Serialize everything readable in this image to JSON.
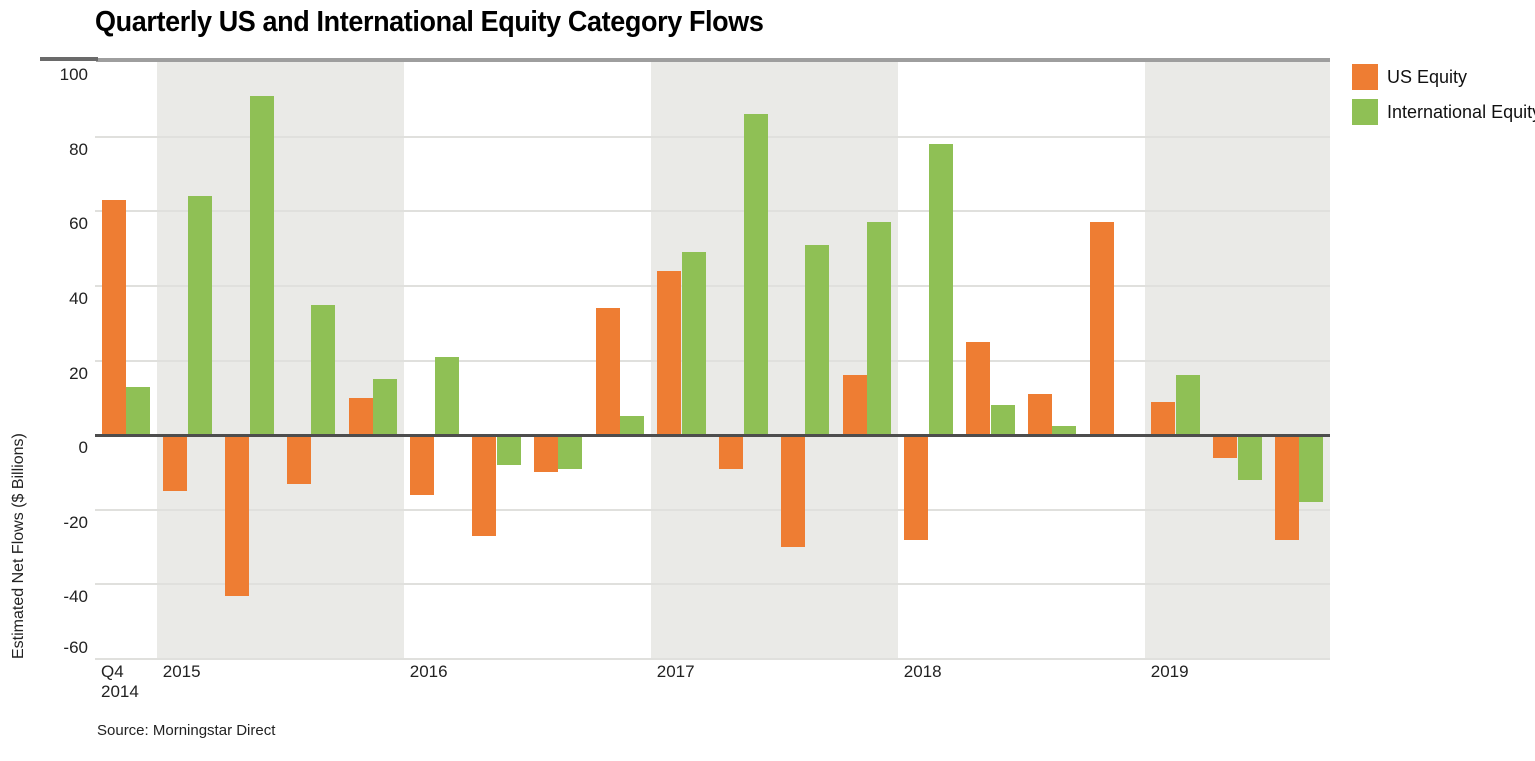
{
  "title": "Quarterly US and International Equity Category Flows",
  "source": "Source: Morningstar Direct",
  "y_axis": {
    "label": "Estimated Net Flows ($ Billions)",
    "ticks": [
      100,
      80,
      60,
      40,
      20,
      0,
      -20,
      -40,
      -60
    ]
  },
  "colors": {
    "us_equity": "#EE7D33",
    "international_equity": "#8FC055",
    "year_band": "#EAEAE7",
    "gridline": "#E0E0DD",
    "zero_line": "#4D4D4D"
  },
  "chart_data": {
    "type": "bar",
    "title": "Quarterly US and International Equity Category Flows",
    "xlabel": "",
    "ylabel": "Estimated Net Flows ($ Billions)",
    "ylim": [
      -60,
      100
    ],
    "grid": true,
    "legend_position": "top-right",
    "categories": [
      "Q4 2014",
      "Q1 2015",
      "Q2 2015",
      "Q3 2015",
      "Q4 2015",
      "Q1 2016",
      "Q2 2016",
      "Q3 2016",
      "Q4 2016",
      "Q1 2017",
      "Q2 2017",
      "Q3 2017",
      "Q4 2017",
      "Q1 2018",
      "Q2 2018",
      "Q3 2018",
      "Q4 2018",
      "Q1 2019",
      "Q2 2019",
      "Q3 2019"
    ],
    "series": [
      {
        "name": "US Equity",
        "color": "#EE7D33",
        "values": [
          63,
          -15,
          -43,
          -13,
          10,
          -16,
          -27,
          -10,
          34,
          44,
          -9,
          -30,
          16,
          -28,
          25,
          11,
          57,
          9,
          -6,
          -28
        ]
      },
      {
        "name": "International Equity",
        "color": "#8FC055",
        "values": [
          13,
          64,
          91,
          35,
          15,
          21,
          -8,
          -9,
          5,
          49,
          86,
          51,
          57,
          78,
          8,
          2.5,
          0,
          16,
          -12,
          -18
        ]
      }
    ],
    "year_bands": [
      {
        "label_lines": [
          "Q4",
          "2014"
        ],
        "quarters": 1,
        "shaded": false
      },
      {
        "label_lines": [
          "2015"
        ],
        "quarters": 4,
        "shaded": true
      },
      {
        "label_lines": [
          "2016"
        ],
        "quarters": 4,
        "shaded": false
      },
      {
        "label_lines": [
          "2017"
        ],
        "quarters": 4,
        "shaded": true
      },
      {
        "label_lines": [
          "2018"
        ],
        "quarters": 4,
        "shaded": false
      },
      {
        "label_lines": [
          "2019"
        ],
        "quarters": 3,
        "shaded": true
      }
    ]
  }
}
